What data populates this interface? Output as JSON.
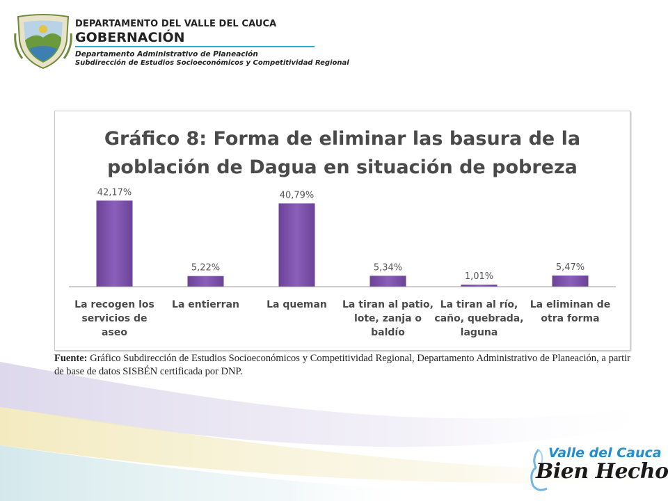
{
  "header": {
    "department": "DEPARTAMENTO DEL VALLE DEL CAUCA",
    "government": "GOBERNACIÓN",
    "office": "Departamento  Administrativo de Planeación",
    "suboffice": "Subdirección de Estudios Socioeconómicos y Competitividad Regional"
  },
  "chart_data": {
    "type": "bar",
    "title_lines": [
      "Gráfico 8: Forma de eliminar las basura de la",
      "población de Dagua en situación de pobreza"
    ],
    "categories": [
      [
        "La recogen los",
        "servicios de",
        "aseo"
      ],
      [
        "La entierran"
      ],
      [
        "La queman"
      ],
      [
        "La tiran al patio,",
        "lote, zanja o",
        "baldío"
      ],
      [
        "La tiran al río,",
        "caño, quebrada,",
        "laguna"
      ],
      [
        "La eliminan de",
        "otra forma"
      ]
    ],
    "values": [
      42.17,
      5.22,
      40.79,
      5.34,
      1.01,
      5.47
    ],
    "data_labels": [
      "42,17%",
      "5,22%",
      "40,79%",
      "5,34%",
      "1,01%",
      "5,47%"
    ],
    "ylim": [
      0,
      45
    ],
    "grid": false,
    "legend": "none",
    "bar_color": "#7b52a8"
  },
  "source": {
    "label": "Fuente:",
    "text": " Gráfico Subdirección de Estudios Socioeconómicos y Competitividad Regional, Departamento Administrativo de Planeación, a partir de base de datos SISBÉN certificada por DNP."
  },
  "brand": {
    "line1": "Valle del Cauca",
    "line2": "Bien Hecho!"
  }
}
